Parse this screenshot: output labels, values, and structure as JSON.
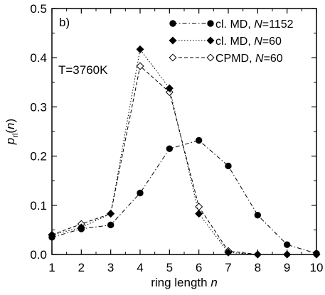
{
  "chart_data": {
    "type": "line",
    "panel_label": "b)",
    "annotation": "T=3760K",
    "xlabel": "ring length n",
    "ylabel": "p_rl(n)",
    "xlim": [
      1,
      10
    ],
    "ylim": [
      0,
      0.5
    ],
    "x_ticks": [
      "1",
      "2",
      "3",
      "4",
      "5",
      "6",
      "7",
      "8",
      "9",
      "10"
    ],
    "y_ticks": [
      "0.0",
      "0.1",
      "0.2",
      "0.3",
      "0.4",
      "0.5"
    ],
    "grid": false,
    "legend_position": "top-right",
    "x": [
      1,
      2,
      3,
      4,
      5,
      6,
      7,
      8,
      9,
      10
    ],
    "series": [
      {
        "name": "cl. MD, N=1152",
        "marker": "filled-circle",
        "line_style": "dash-dot",
        "values": [
          0.035,
          0.052,
          0.06,
          0.125,
          0.215,
          0.232,
          0.18,
          0.08,
          0.02,
          0.002
        ]
      },
      {
        "name": "cl. MD, N=60",
        "marker": "filled-diamond",
        "line_style": "dotted",
        "values": [
          0.04,
          0.055,
          0.083,
          0.417,
          0.338,
          0.083,
          0.004,
          0.0,
          0.0,
          0.0
        ]
      },
      {
        "name": "CPMD, N=60",
        "marker": "open-diamond",
        "line_style": "dashed",
        "values": [
          0.04,
          0.062,
          0.083,
          0.383,
          0.33,
          0.097,
          0.007,
          0.0,
          0.0,
          0.0
        ]
      }
    ]
  }
}
